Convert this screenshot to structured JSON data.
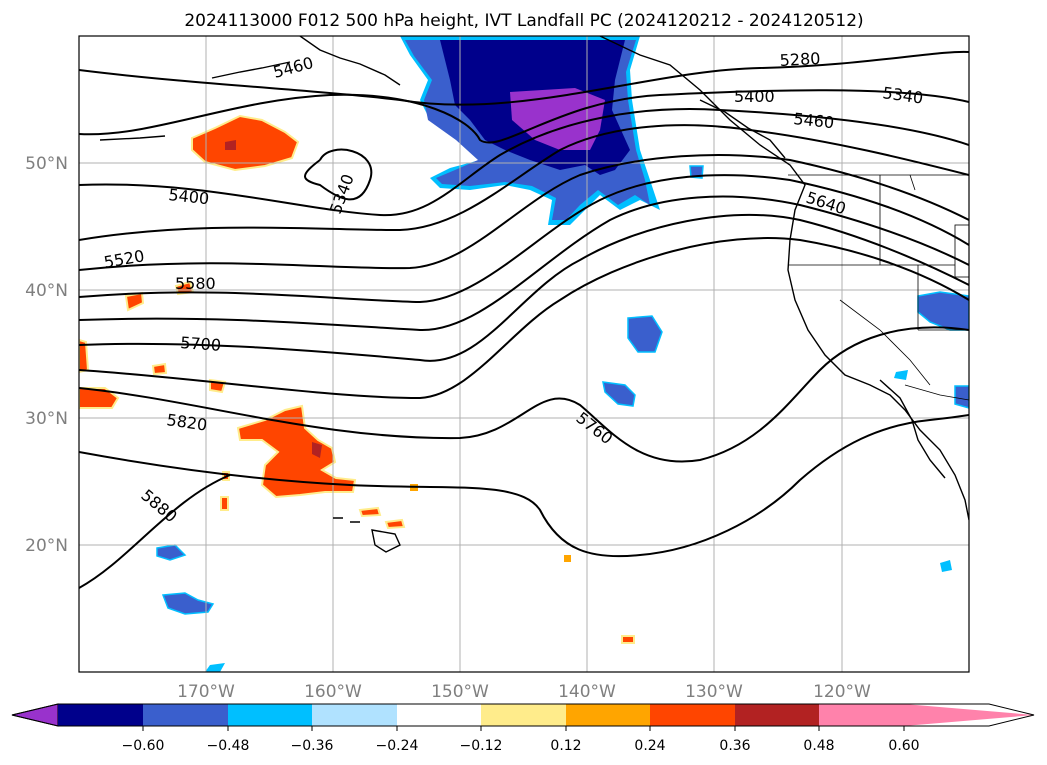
{
  "figure": {
    "title": "2024113000 F012 500 hPa height, IVT Landfall PC (2024120212 - 2024120512)"
  },
  "map": {
    "lat_labels": [
      "50°N",
      "40°N",
      "30°N",
      "20°N"
    ],
    "lon_labels": [
      "170°W",
      "160°W",
      "150°W",
      "140°W",
      "130°W",
      "120°W"
    ],
    "contour_labels": [
      "5460",
      "5280",
      "5400",
      "5340",
      "5460",
      "5400",
      "5340",
      "5640",
      "5520",
      "5580",
      "5700",
      "5820",
      "5760",
      "5880"
    ]
  },
  "colorbar": {
    "tick_labels": [
      "−0.60",
      "−0.48",
      "−0.36",
      "−0.24",
      "−0.12",
      "0.12",
      "0.24",
      "0.36",
      "0.48",
      "0.60"
    ],
    "colors": [
      "#9932cc",
      "#00008b",
      "#3a5fcd",
      "#00bfff",
      "#b0e2ff",
      "#ffffff",
      "#ffec8b",
      "#ffa500",
      "#ff4500",
      "#b22222",
      "#ff82ab"
    ]
  }
}
